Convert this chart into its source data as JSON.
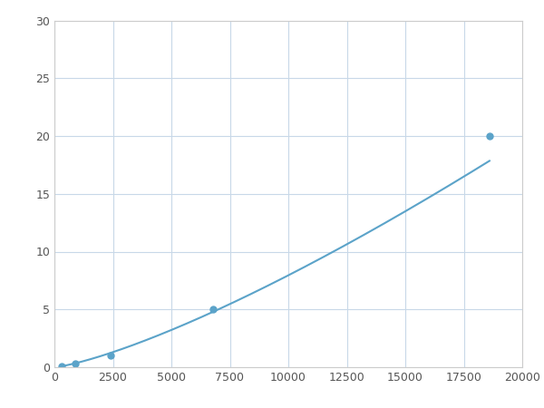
{
  "x_points": [
    300,
    900,
    2400,
    6800,
    18600
  ],
  "y_points": [
    0.1,
    0.3,
    1.0,
    5.0,
    20.0
  ],
  "line_color": "#5ba3c9",
  "marker_color": "#5ba3c9",
  "marker_size": 5,
  "line_width": 1.5,
  "xlim": [
    0,
    20000
  ],
  "ylim": [
    0,
    30
  ],
  "xticks": [
    0,
    2500,
    5000,
    7500,
    10000,
    12500,
    15000,
    17500,
    20000
  ],
  "yticks": [
    0,
    5,
    10,
    15,
    20,
    25,
    30
  ],
  "background_color": "#ffffff",
  "grid_color": "#c8d8e8",
  "title": "",
  "figsize": [
    6.0,
    4.5
  ],
  "dpi": 100
}
